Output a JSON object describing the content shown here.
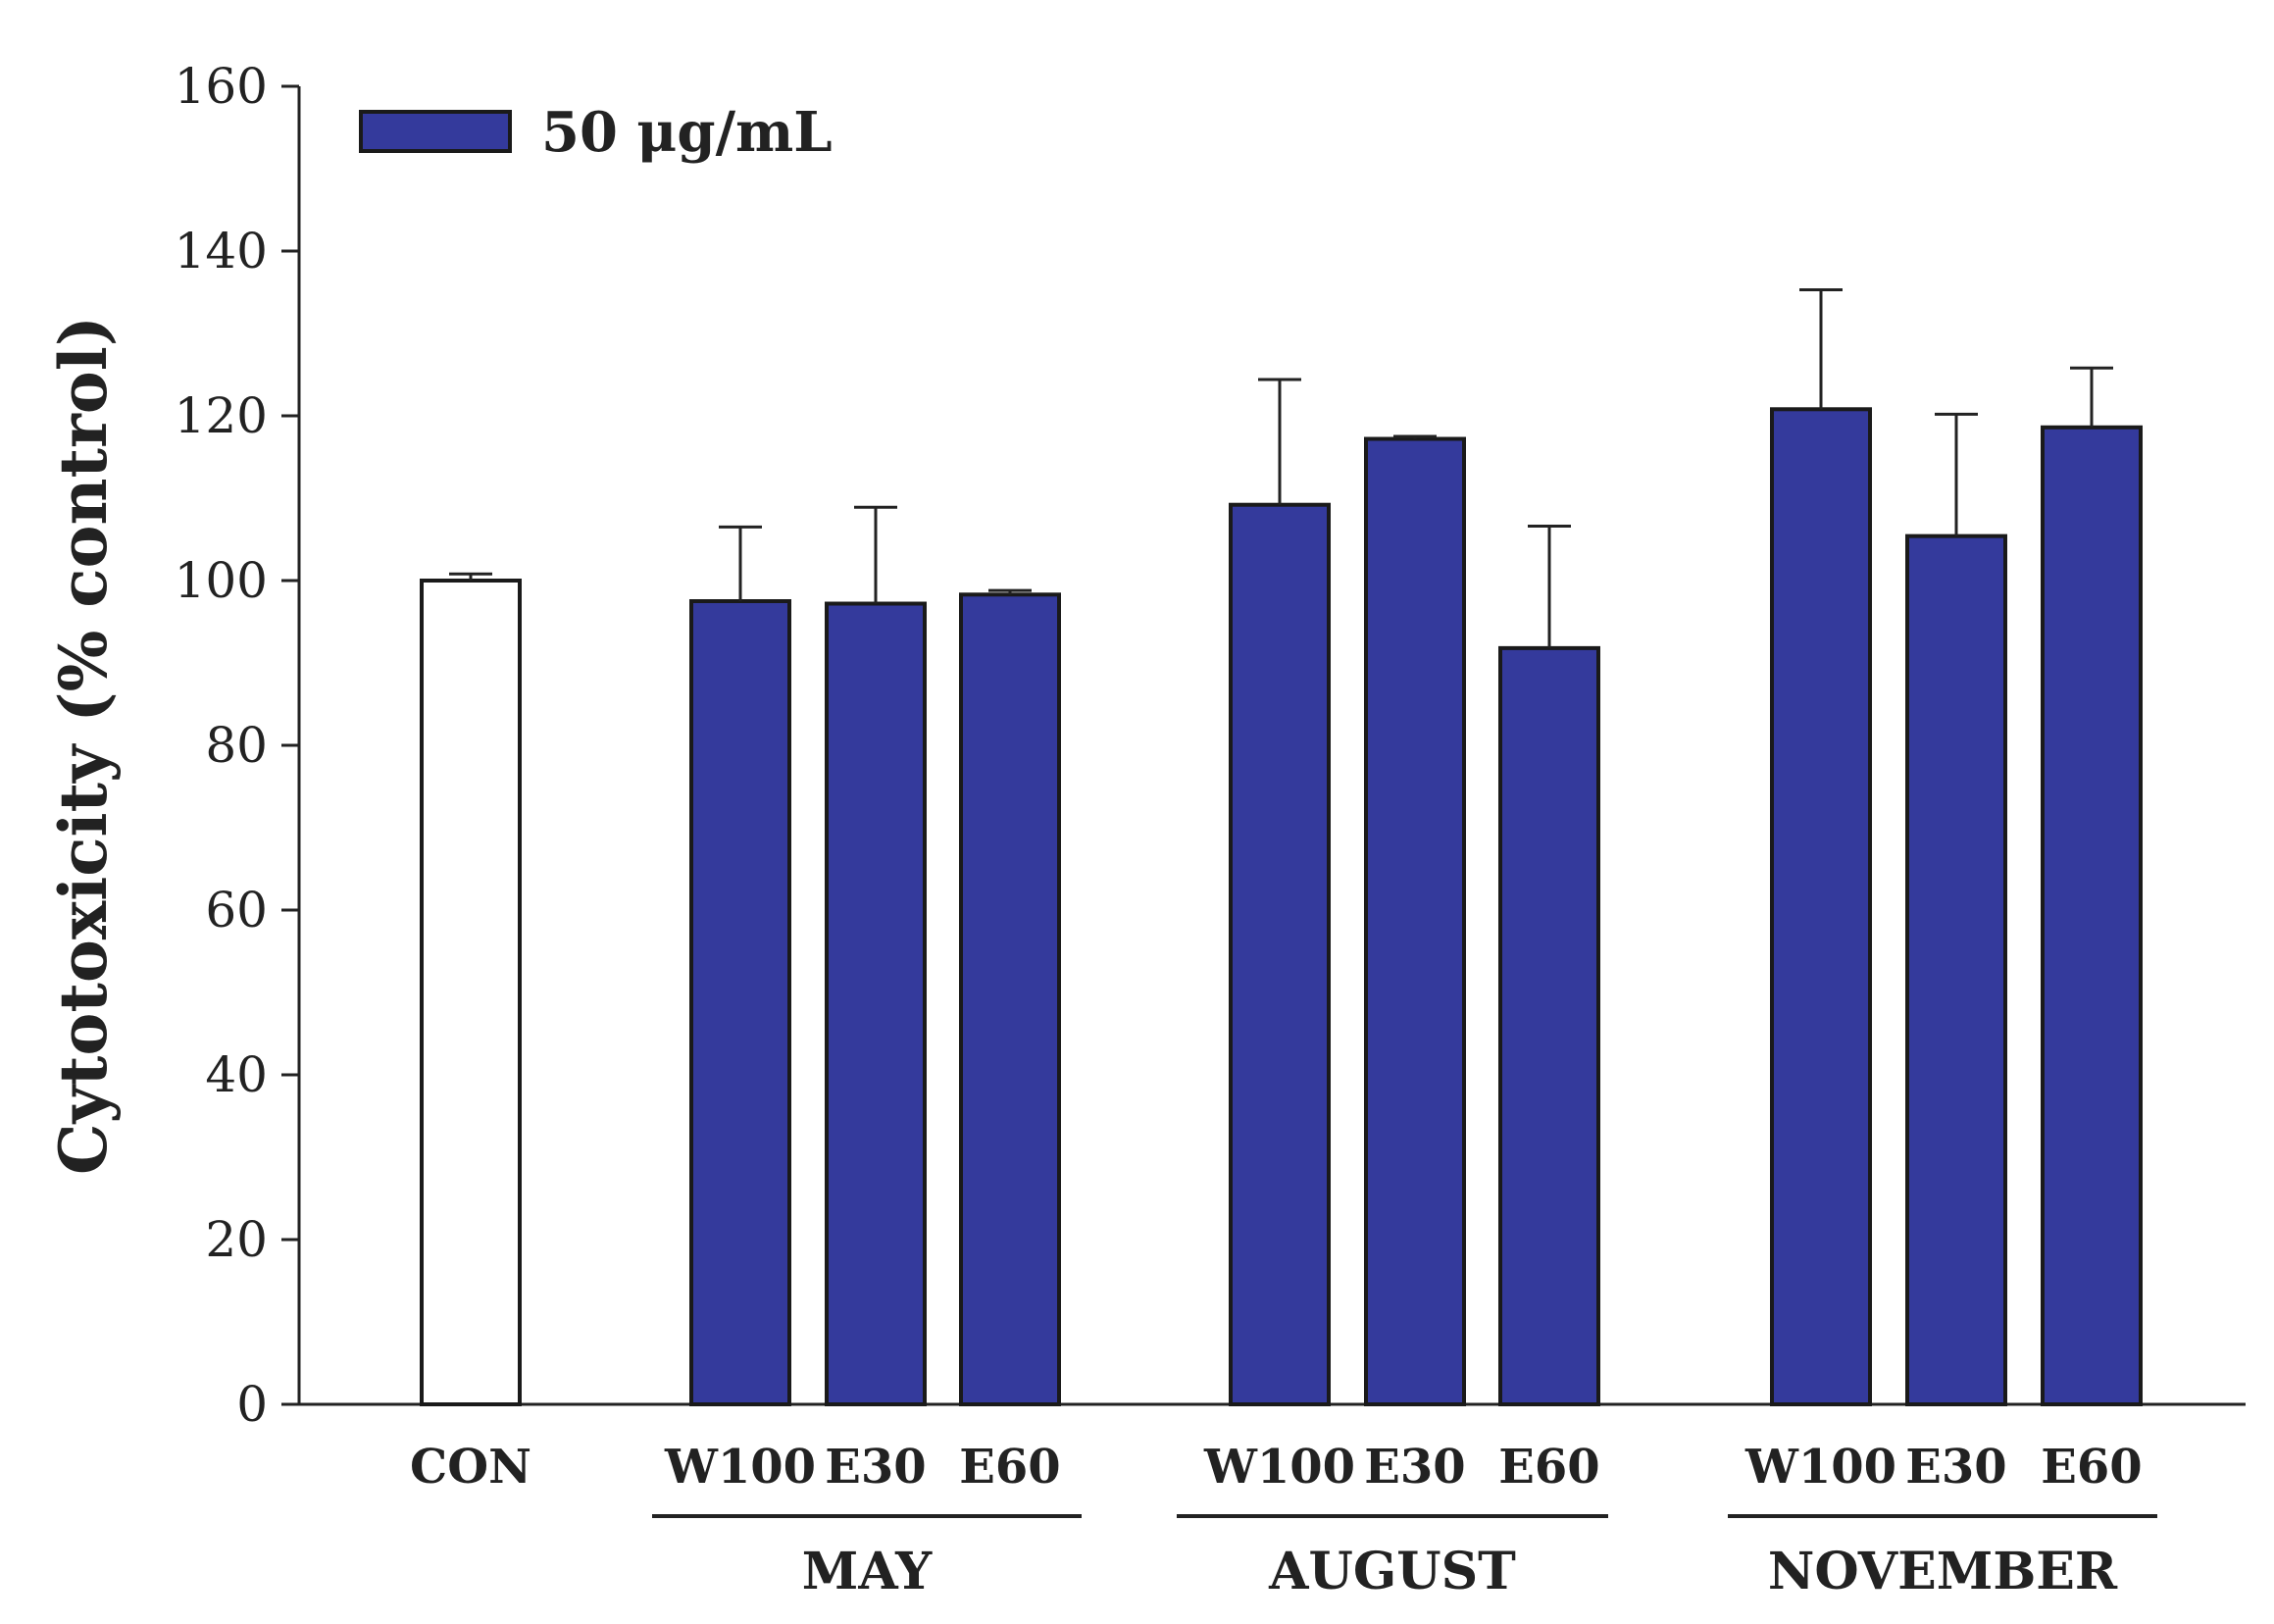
{
  "chart_data": {
    "type": "bar",
    "title": "",
    "xlabel": "",
    "ylabel": "Cytotoxicity (% control)",
    "ylim": [
      0,
      160
    ],
    "yticks": [
      0,
      20,
      40,
      60,
      80,
      100,
      120,
      140,
      160
    ],
    "ytick_labels": [
      "0",
      "20",
      "40",
      "60",
      "80",
      "100",
      "120",
      "140",
      "160"
    ],
    "grid": false,
    "legend": {
      "placement": "top-left",
      "entries": [
        {
          "label": "50 μg/mL",
          "color": "#343a9c"
        }
      ]
    },
    "categories": [
      "CON",
      "W100",
      "E30",
      "E60",
      "W100",
      "E30",
      "E60",
      "W100",
      "E30",
      "E60"
    ],
    "groups": [
      {
        "label": "MAY",
        "members": [
          1,
          2,
          3
        ]
      },
      {
        "label": "AUGUST",
        "members": [
          4,
          5,
          6
        ]
      },
      {
        "label": "NOVEMBER",
        "members": [
          7,
          8,
          9
        ]
      }
    ],
    "series": [
      {
        "name": "50 μg/mL",
        "values": [
          100,
          97.5,
          97.2,
          98.3,
          109.2,
          117.2,
          91.8,
          120.8,
          105.4,
          118.6
        ],
        "errors": [
          0.8,
          9,
          11.7,
          0.5,
          15.2,
          0.3,
          14.8,
          14.5,
          14.8,
          7.2
        ],
        "fills": [
          "#ffffff",
          "#343a9c",
          "#343a9c",
          "#343a9c",
          "#343a9c",
          "#343a9c",
          "#343a9c",
          "#343a9c",
          "#343a9c",
          "#343a9c"
        ]
      }
    ]
  }
}
